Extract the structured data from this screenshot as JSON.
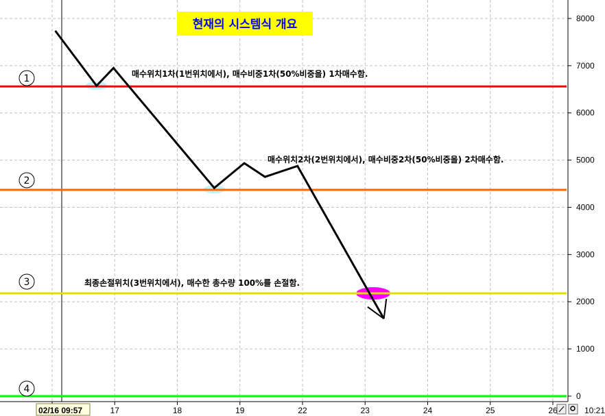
{
  "chart_data": {
    "type": "line",
    "title": "현재의 시스템식 개요",
    "x_tick_labels": [
      "02/16 09:57",
      "17",
      "18",
      "19",
      "22",
      "23",
      "24",
      "25",
      "26"
    ],
    "x_note": "x values are positions on the trading-day axis, 0 = 02/16, 1 = 17, 2 = 18, 3 = 19, 4 = 22, 5 = 23, 6 = 24, 7 = 25, 8 = 26",
    "y_ticks": [
      0,
      1000,
      2000,
      3000,
      4000,
      5000,
      6000,
      7000,
      8000
    ],
    "ylim": [
      0,
      8000
    ],
    "grid": true,
    "crosshair_label": "02/16 09:57",
    "time_label": "10:21",
    "series": [
      {
        "points": [
          [
            0.05,
            7740
          ],
          [
            0.71,
            6575
          ],
          [
            0.98,
            6950
          ],
          [
            2.59,
            4410
          ],
          [
            3.07,
            4935
          ],
          [
            3.4,
            4645
          ],
          [
            3.92,
            4875
          ],
          [
            5.3,
            1640
          ]
        ],
        "color": "#000000"
      }
    ],
    "arrow": {
      "tip": [
        5.3,
        1640
      ],
      "ends": [
        [
          5.04,
          1890
        ],
        [
          5.34,
          2060
        ]
      ]
    },
    "levels": [
      {
        "marker": "①",
        "value": 6560,
        "color": "#ff0000",
        "text": "매수위치1차(1번위치에서), 매수비중1차(50%비중을) 1차매수함."
      },
      {
        "marker": "②",
        "value": 4370,
        "color": "#ff6600",
        "text": "매수위치2차(2번위치에서), 매수비중2차(50%비중을) 2차매수함."
      },
      {
        "marker": "③",
        "value": 2177,
        "color": "#e0e000",
        "text": "최종손절위치(3번위치에서), 매수한 총수량 100%를 손절함."
      },
      {
        "marker": "④",
        "value": 0,
        "color": "#00ff00",
        "text": ""
      }
    ],
    "highlights": [
      {
        "x": 0.71,
        "y": 6575,
        "color": "#c0f4f8"
      },
      {
        "x": 2.59,
        "y": 4380,
        "color": "#c0f4f8"
      },
      {
        "x": 5.13,
        "y": 2177,
        "color": "#ff00ff"
      }
    ]
  },
  "toolbar": {
    "icons": [
      "pencil-icon",
      "magnifier-icon"
    ]
  }
}
